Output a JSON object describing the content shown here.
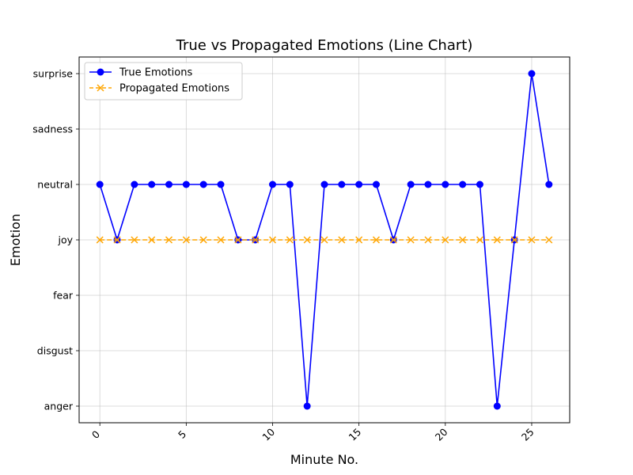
{
  "chart_data": {
    "type": "line",
    "title": "True vs Propagated Emotions (Line Chart)",
    "xlabel": "Minute No.",
    "ylabel": "Emotion",
    "categories_y": [
      "anger",
      "disgust",
      "fear",
      "joy",
      "neutral",
      "sadness",
      "surprise"
    ],
    "x_ticks": [
      0,
      5,
      10,
      15,
      20,
      25
    ],
    "x_tick_labels": [
      "0",
      "5",
      "10",
      "15",
      "20",
      "25"
    ],
    "xlim": [
      -1.2,
      27.2
    ],
    "ylim": [
      -0.3,
      6.3
    ],
    "grid": true,
    "legend_position": "top-left",
    "x": [
      0,
      1,
      2,
      3,
      4,
      5,
      6,
      7,
      8,
      9,
      10,
      11,
      12,
      13,
      14,
      15,
      16,
      17,
      18,
      19,
      20,
      21,
      22,
      23,
      24,
      25,
      26
    ],
    "series": [
      {
        "name": "True Emotions",
        "color": "#0000ff",
        "marker": "circle",
        "line_style": "solid",
        "values": [
          "neutral",
          "joy",
          "neutral",
          "neutral",
          "neutral",
          "neutral",
          "neutral",
          "neutral",
          "joy",
          "joy",
          "neutral",
          "neutral",
          "anger",
          "neutral",
          "neutral",
          "neutral",
          "neutral",
          "joy",
          "neutral",
          "neutral",
          "neutral",
          "neutral",
          "neutral",
          "anger",
          "joy",
          "surprise",
          "neutral"
        ]
      },
      {
        "name": "Propagated Emotions",
        "color": "#ffa500",
        "marker": "x",
        "line_style": "dashed",
        "values": [
          "joy",
          "joy",
          "joy",
          "joy",
          "joy",
          "joy",
          "joy",
          "joy",
          "joy",
          "joy",
          "joy",
          "joy",
          "joy",
          "joy",
          "joy",
          "joy",
          "joy",
          "joy",
          "joy",
          "joy",
          "joy",
          "joy",
          "joy",
          "joy",
          "joy",
          "joy",
          "joy"
        ]
      }
    ]
  }
}
